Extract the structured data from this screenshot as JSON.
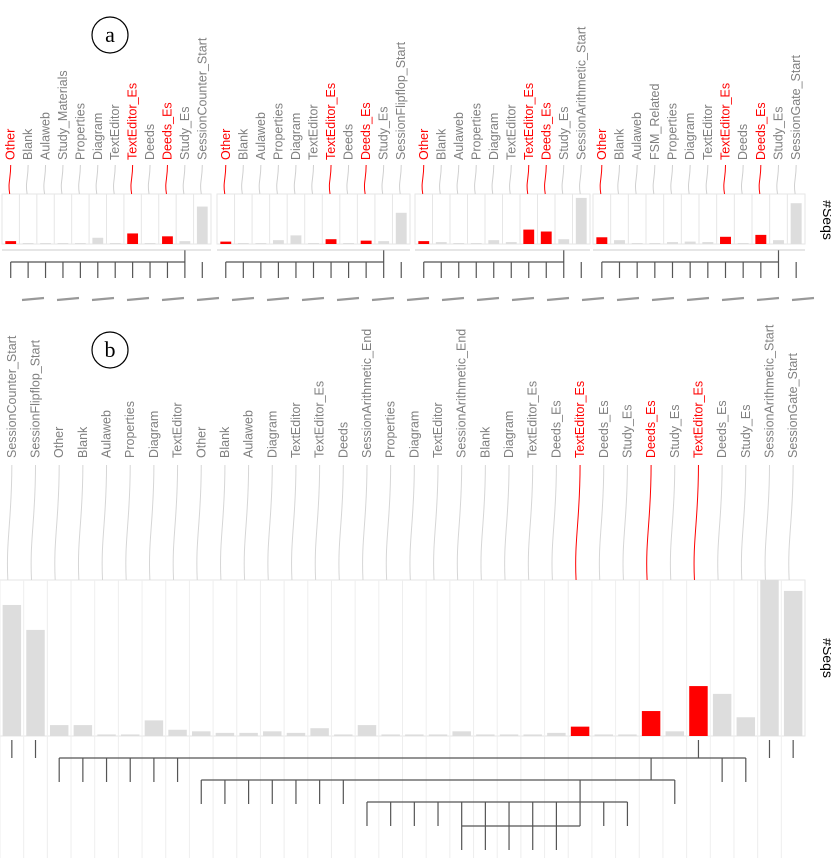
{
  "colors": {
    "highlight": "#ff0000",
    "bar": "#dddddd",
    "label": "#7f7f7f",
    "tree": "#555555",
    "grid": "#e6e6e6"
  },
  "chart_data": [
    {
      "panel": "a",
      "type": "bar",
      "ylabel": "#Seqs",
      "groups": [
        {
          "labels": [
            "Other",
            "Blank",
            "Aulaweb",
            "Study_Materials",
            "Properties",
            "Diagram",
            "TextEditor",
            "TextEditor_Es",
            "Deeds",
            "Deeds_Es",
            "Study_Es",
            "SessionCounter_Start"
          ],
          "values": [
            0.06,
            0.02,
            0.02,
            0.02,
            0.02,
            0.13,
            0.02,
            0.22,
            0.02,
            0.16,
            0.06,
            0.78
          ],
          "highlight": [
            true,
            false,
            false,
            false,
            false,
            false,
            false,
            true,
            false,
            true,
            false,
            false
          ]
        },
        {
          "labels": [
            "Other",
            "Blank",
            "Aulaweb",
            "Properties",
            "Diagram",
            "TextEditor",
            "TextEditor_Es",
            "Deeds",
            "Deeds_Es",
            "Study_Es",
            "SessionFlipflop_Start"
          ],
          "values": [
            0.05,
            0.02,
            0.02,
            0.08,
            0.18,
            0.02,
            0.1,
            0.02,
            0.07,
            0.06,
            0.65
          ],
          "highlight": [
            true,
            false,
            false,
            false,
            false,
            false,
            true,
            false,
            true,
            false,
            false
          ]
        },
        {
          "labels": [
            "Other",
            "Blank",
            "Aulaweb",
            "Properties",
            "Diagram",
            "TextEditor",
            "TextEditor_Es",
            "Deeds_Es",
            "Study_Es",
            "SessionArithmetic_Start"
          ],
          "values": [
            0.06,
            0.04,
            0.02,
            0.02,
            0.08,
            0.04,
            0.3,
            0.26,
            0.1,
            0.96
          ],
          "highlight": [
            true,
            false,
            false,
            false,
            false,
            false,
            true,
            true,
            false,
            false
          ]
        },
        {
          "labels": [
            "Other",
            "Blank",
            "Aulaweb",
            "FSM_Related",
            "Properties",
            "Diagram",
            "TextEditor",
            "TextEditor_Es",
            "Deeds",
            "Deeds_Es",
            "Study_Es",
            "SessionGate_Start"
          ],
          "values": [
            0.14,
            0.08,
            0.02,
            0.02,
            0.04,
            0.05,
            0.04,
            0.15,
            0.02,
            0.19,
            0.08,
            0.85
          ],
          "highlight": [
            true,
            false,
            false,
            false,
            false,
            false,
            false,
            true,
            false,
            true,
            false,
            false
          ]
        }
      ]
    },
    {
      "panel": "b",
      "type": "bar",
      "ylabel": "#Seqs",
      "labels": [
        "SessionCounter_Start",
        "SessionFlipflop_Start",
        "Other",
        "Blank",
        "Aulaweb",
        "Properties",
        "Diagram",
        "TextEditor",
        "Other",
        "Blank",
        "Aulaweb",
        "Diagram",
        "TextEditor",
        "TextEditor_Es",
        "Deeds",
        "SessionArithmetic_End",
        "Properties",
        "Diagram",
        "TextEditor",
        "SessionArithmetic_End",
        "Blank",
        "Diagram",
        "TextEditor_Es",
        "Deeds_Es",
        "TextEditor_Es",
        "Deeds_Es",
        "Study_Es",
        "Deeds_Es",
        "Study_Es",
        "TextEditor_Es",
        "Deeds_Es",
        "Study_Es",
        "SessionArithmetic_Start",
        "SessionGate_Start"
      ],
      "values": [
        0.84,
        0.68,
        0.07,
        0.07,
        0.01,
        0.01,
        0.1,
        0.04,
        0.03,
        0.02,
        0.02,
        0.03,
        0.02,
        0.05,
        0.01,
        0.07,
        0.01,
        0.01,
        0.01,
        0.03,
        0.01,
        0.01,
        0.01,
        0.02,
        0.06,
        0.01,
        0.01,
        0.16,
        0.03,
        0.32,
        0.27,
        0.12,
        1.0,
        0.93
      ],
      "highlight": [
        false,
        false,
        false,
        false,
        false,
        false,
        false,
        false,
        false,
        false,
        false,
        false,
        false,
        false,
        false,
        false,
        false,
        false,
        false,
        false,
        false,
        false,
        false,
        false,
        true,
        false,
        false,
        true,
        false,
        true,
        false,
        false,
        false,
        false
      ],
      "tree": [
        {
          "items": [
            0,
            1,
            32,
            33
          ],
          "stem": 32
        },
        {
          "items": [
            2,
            3,
            4,
            5,
            6,
            7,
            29,
            30,
            31
          ],
          "stem": 29
        },
        {
          "items": [
            8,
            9,
            10,
            11,
            12,
            13,
            14,
            27,
            28
          ],
          "stem": 27
        },
        {
          "items": [
            15,
            16,
            17,
            18,
            19,
            20,
            21,
            22,
            23,
            24,
            25,
            26
          ],
          "stem": 24
        },
        {
          "items": [
            19,
            20,
            21,
            22,
            23,
            24
          ],
          "stem": 24
        }
      ]
    }
  ]
}
